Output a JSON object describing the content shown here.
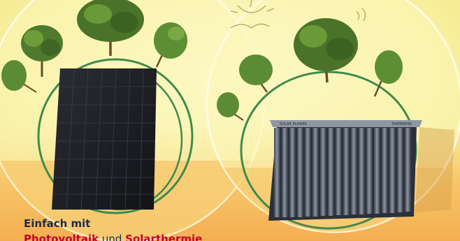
{
  "caption": {
    "line1": "Einfach mit",
    "term1": "Photovoltaik",
    "joiner": " und ",
    "term2": "Solarthermie"
  },
  "collector_label_left": "SOLAR PLASMA",
  "collector_label_right": "TRIEBWERK",
  "colors": {
    "background_yellow": "#f6ef9a",
    "orange_band": "#f6b45a",
    "ring_green": "#3f8a4e",
    "pv_panel": "#1b1d21",
    "caption_red": "#c3002f",
    "caption_navy": "#1f2b4a"
  }
}
